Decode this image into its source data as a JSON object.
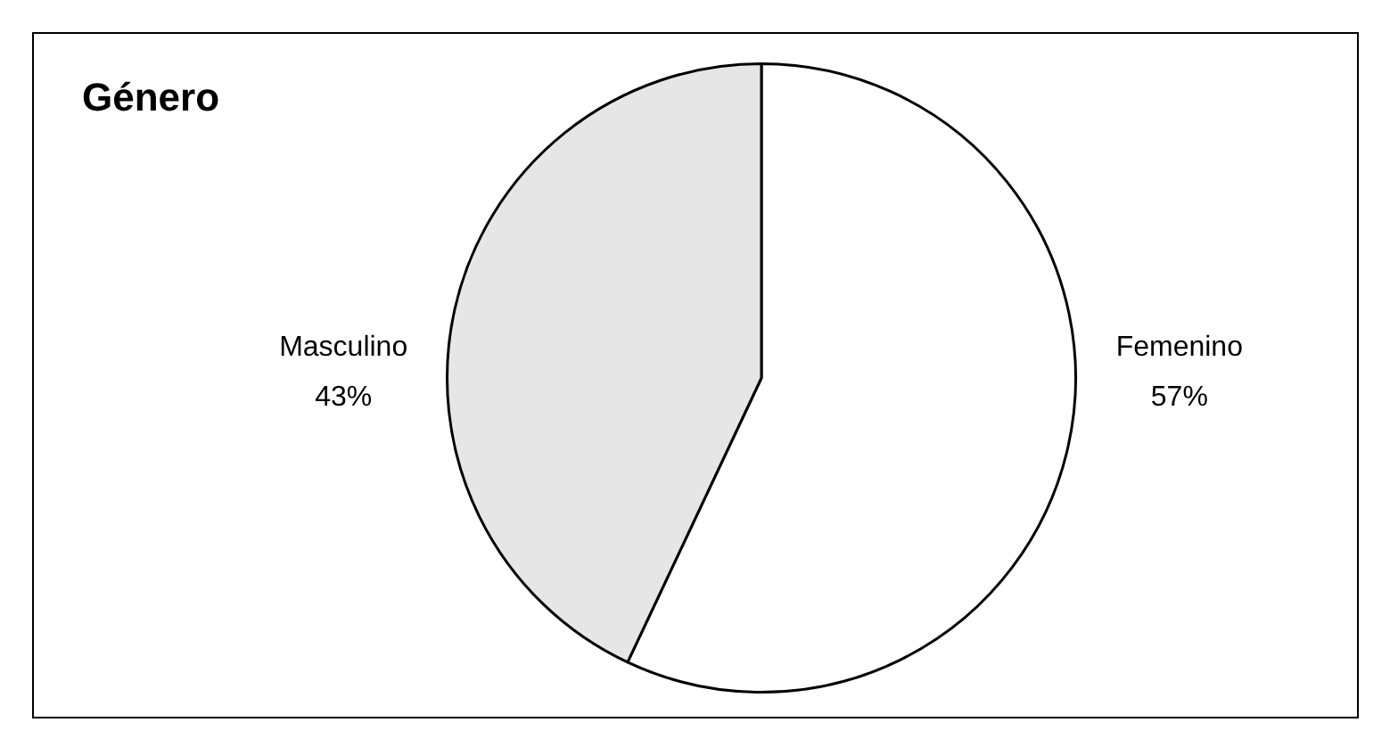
{
  "chart_data": {
    "type": "pie",
    "title": "Género",
    "categories": [
      "Femenino",
      "Masculino"
    ],
    "values": [
      57,
      43
    ],
    "colors": [
      "#ffffff",
      "#e6e6e6"
    ],
    "value_labels": [
      "57%",
      "43%"
    ],
    "legend": false
  }
}
